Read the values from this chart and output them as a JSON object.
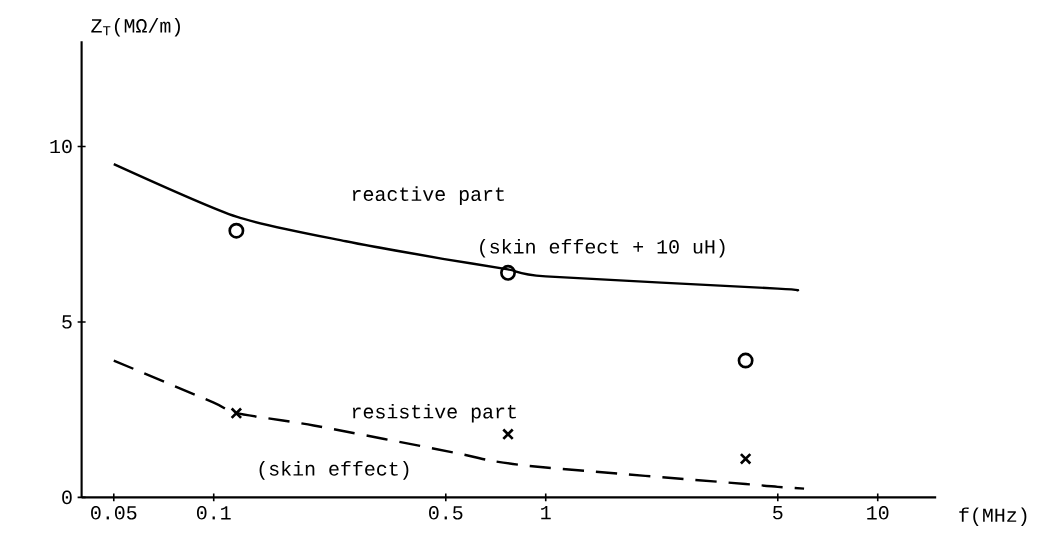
{
  "chart_data": {
    "type": "line",
    "xlabel": "f(MHz)",
    "ylabel": "Z$_{T}$(MΩ/m)",
    "log": "x",
    "xlim": [
      0.04,
      15
    ],
    "ylim": [
      0,
      13
    ],
    "xticks": [
      {
        "value": 0.05,
        "label": "0.05"
      },
      {
        "value": 0.1,
        "label": "0.1"
      },
      {
        "value": 0.5,
        "label": "0.5"
      },
      1,
      5,
      10
    ],
    "yticks": [
      0,
      5,
      10
    ],
    "grid": false,
    "series": [
      {
        "line_style": "solid",
        "marker": "none",
        "color": "#000000",
        "x": [
          0.05,
          0.117,
          0.25,
          0.49,
          0.77,
          1,
          5,
          5.7
        ],
        "values": [
          9.5,
          8.0,
          7.3,
          6.8,
          6.5,
          6.3,
          5.95,
          5.9
        ]
      },
      {
        "line_style": "dashed",
        "marker": "none",
        "color": "#000000",
        "x": [
          0.05,
          0.1,
          0.117,
          0.2,
          0.54,
          0.69,
          1,
          4,
          5,
          6
        ],
        "values": [
          3.9,
          2.7,
          2.4,
          2.05,
          1.26,
          1.04,
          0.85,
          0.38,
          0.3,
          0.25
        ]
      },
      {
        "type": "scatter",
        "marker": "circle",
        "color": "#000000",
        "x": [
          0.117,
          0.77,
          4
        ],
        "values": [
          7.6,
          6.4,
          3.9
        ]
      },
      {
        "type": "scatter",
        "marker": "cross",
        "color": "#000000",
        "x": [
          0.117,
          0.77,
          4
        ],
        "values": [
          2.4,
          1.8,
          1.1
        ]
      }
    ],
    "annotations": [
      "reactive part",
      "(skin effect + 10 uH)",
      "resistive part",
      "(skin effect)"
    ]
  }
}
